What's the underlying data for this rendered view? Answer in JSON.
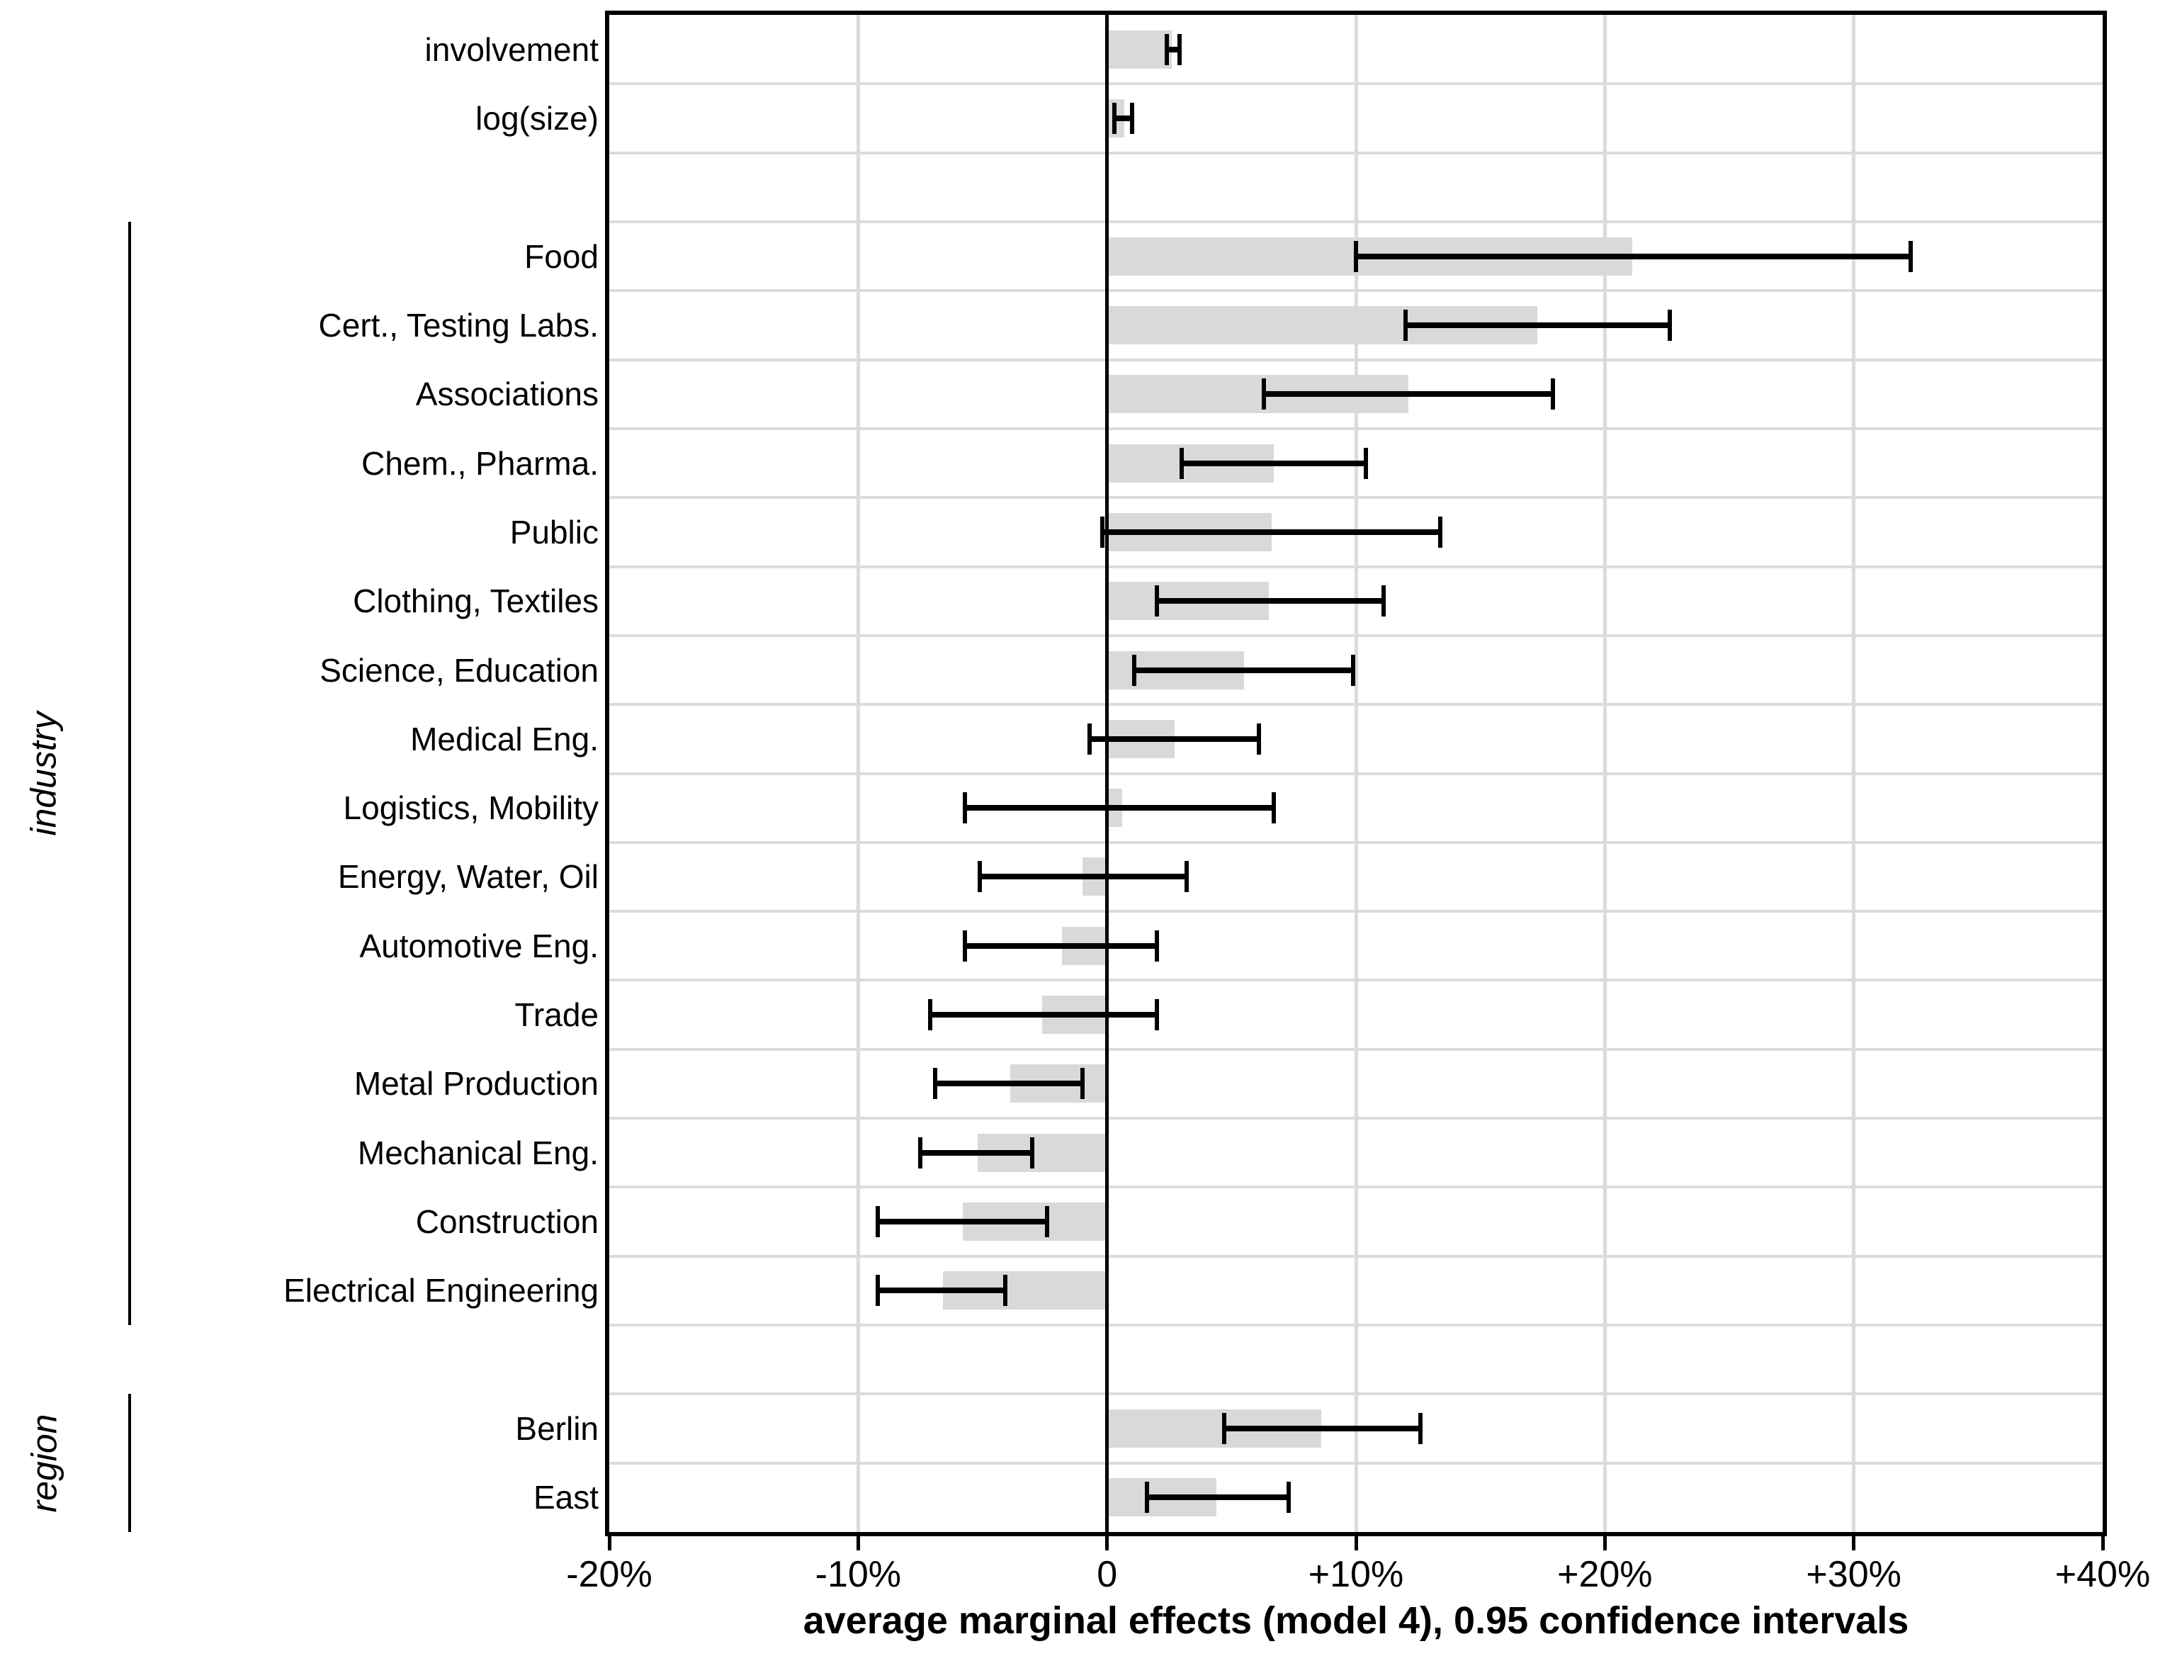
{
  "chart_data": {
    "type": "bar",
    "orientation": "horizontal",
    "title": "",
    "xlabel": "average marginal effects (model 4), 0.95 confidence intervals",
    "ylabel": "",
    "xlim": [
      -20,
      40
    ],
    "x_unit": "percent",
    "grid": true,
    "legend_position": "none",
    "bar_color": "#d9d9d9",
    "grid_color": "#dbdbdb",
    "zero_line_color": "#000000",
    "error_bar_color": "#000000",
    "x_ticks": [
      {
        "value": -20,
        "label": "-20%"
      },
      {
        "value": -10,
        "label": "-10%"
      },
      {
        "value": 0,
        "label": "0"
      },
      {
        "value": 10,
        "label": "+10%"
      },
      {
        "value": 20,
        "label": "+20%"
      },
      {
        "value": 30,
        "label": "+30%"
      },
      {
        "value": 40,
        "label": "+40%"
      }
    ],
    "rows": [
      {
        "type": "item",
        "label": "involvement",
        "group": null,
        "value": 2.6,
        "ci_low": 2.4,
        "ci_high": 2.9
      },
      {
        "type": "item",
        "label": "log(size)",
        "group": null,
        "value": 0.7,
        "ci_low": 0.3,
        "ci_high": 1.0
      },
      {
        "type": "gap"
      },
      {
        "type": "item",
        "label": "Food",
        "group": "industry",
        "value": 21.1,
        "ci_low": 10.0,
        "ci_high": 32.3
      },
      {
        "type": "item",
        "label": "Cert., Testing Labs.",
        "group": "industry",
        "value": 17.3,
        "ci_low": 12.0,
        "ci_high": 22.6
      },
      {
        "type": "item",
        "label": "Associations",
        "group": "industry",
        "value": 12.1,
        "ci_low": 6.3,
        "ci_high": 17.9
      },
      {
        "type": "item",
        "label": "Chem., Pharma.",
        "group": "industry",
        "value": 6.7,
        "ci_low": 3.0,
        "ci_high": 10.4
      },
      {
        "type": "item",
        "label": "Public",
        "group": "industry",
        "value": 6.6,
        "ci_low": -0.2,
        "ci_high": 13.4
      },
      {
        "type": "item",
        "label": "Clothing, Textiles",
        "group": "industry",
        "value": 6.5,
        "ci_low": 2.0,
        "ci_high": 11.1
      },
      {
        "type": "item",
        "label": "Science, Education",
        "group": "industry",
        "value": 5.5,
        "ci_low": 1.1,
        "ci_high": 9.9
      },
      {
        "type": "item",
        "label": "Medical Eng.",
        "group": "industry",
        "value": 2.7,
        "ci_low": -0.7,
        "ci_high": 6.1
      },
      {
        "type": "item",
        "label": "Logistics, Mobility",
        "group": "industry",
        "value": 0.6,
        "ci_low": -5.7,
        "ci_high": 6.7
      },
      {
        "type": "item",
        "label": "Energy, Water, Oil",
        "group": "industry",
        "value": -1.0,
        "ci_low": -5.1,
        "ci_high": 3.2
      },
      {
        "type": "item",
        "label": "Automotive Eng.",
        "group": "industry",
        "value": -1.8,
        "ci_low": -5.7,
        "ci_high": 2.0
      },
      {
        "type": "item",
        "label": "Trade",
        "group": "industry",
        "value": -2.6,
        "ci_low": -7.1,
        "ci_high": 2.0
      },
      {
        "type": "item",
        "label": "Metal Production",
        "group": "industry",
        "value": -3.9,
        "ci_low": -6.9,
        "ci_high": -1.0
      },
      {
        "type": "item",
        "label": "Mechanical Eng.",
        "group": "industry",
        "value": -5.2,
        "ci_low": -7.5,
        "ci_high": -3.0
      },
      {
        "type": "item",
        "label": "Construction",
        "group": "industry",
        "value": -5.8,
        "ci_low": -9.2,
        "ci_high": -2.4
      },
      {
        "type": "item",
        "label": "Electrical Engineering",
        "group": "industry",
        "value": -6.6,
        "ci_low": -9.2,
        "ci_high": -4.1
      },
      {
        "type": "gap"
      },
      {
        "type": "item",
        "label": "Berlin",
        "group": "region",
        "value": 8.6,
        "ci_low": 4.7,
        "ci_high": 12.6
      },
      {
        "type": "item",
        "label": "East",
        "group": "region",
        "value": 4.4,
        "ci_low": 1.6,
        "ci_high": 7.3
      }
    ],
    "groups": [
      {
        "label": "industry",
        "first_row": "Food",
        "last_row": "Electrical Engineering"
      },
      {
        "label": "region",
        "first_row": "Berlin",
        "last_row": "East"
      }
    ]
  }
}
